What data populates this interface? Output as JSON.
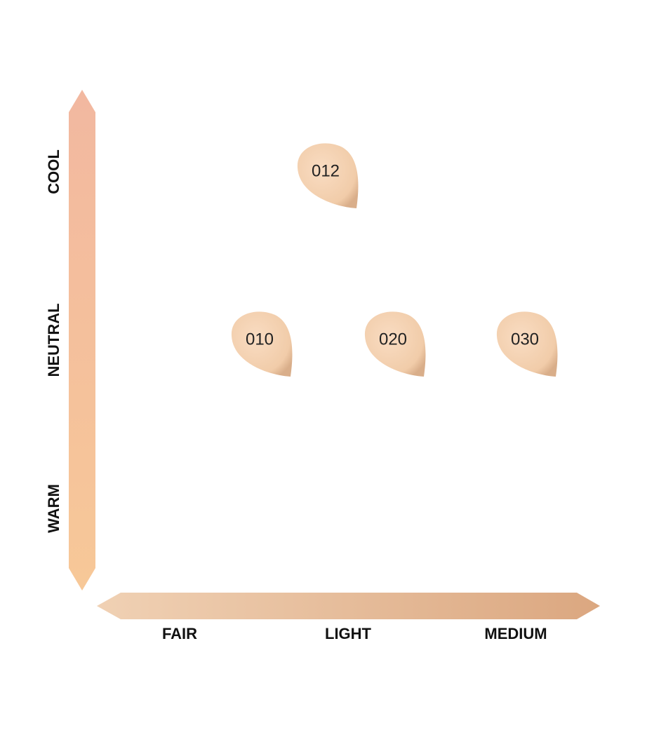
{
  "y_axis": {
    "labels": [
      "COOL",
      "NEUTRAL",
      "WARM"
    ]
  },
  "x_axis": {
    "labels": [
      "FAIR",
      "LIGHT",
      "MEDIUM"
    ]
  },
  "swatches": [
    {
      "label": "012"
    },
    {
      "label": "010"
    },
    {
      "label": "020"
    },
    {
      "label": "030"
    }
  ]
}
